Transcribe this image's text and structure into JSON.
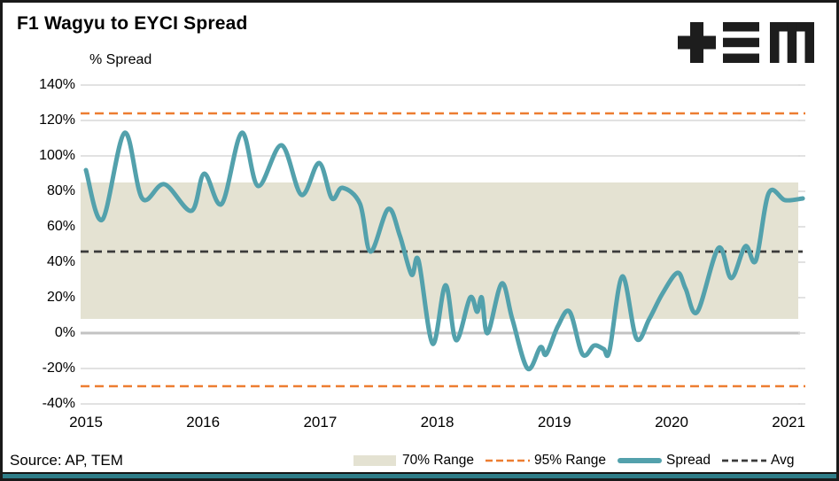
{
  "title": "F1 Wagyu to EYCI Spread",
  "axis_title": "% Spread",
  "source": "Source: AP, TEM",
  "logo_name": "TEM",
  "colors": {
    "spread": "#53a1ac",
    "band": "#e4e2d2",
    "range95": "#ED7D31",
    "avg": "#3b3b3b",
    "grid": "#d9d9d9",
    "zero_line": "#c3c3c3",
    "footer": "#2e7d88",
    "logo": "#1d1d1d",
    "frame": "#1a1a1a"
  },
  "y_axis": {
    "labels": [
      "140%",
      "120%",
      "100%",
      "80%",
      "60%",
      "40%",
      "20%",
      "0%",
      "-20%",
      "-40%"
    ],
    "values": [
      140,
      120,
      100,
      80,
      60,
      40,
      20,
      0,
      -20,
      -40
    ]
  },
  "x_axis": {
    "labels": [
      "2015",
      "2016",
      "2017",
      "2018",
      "2019",
      "2020",
      "2021"
    ],
    "values": [
      2015,
      2016,
      2017,
      2018,
      2019,
      2020,
      2021
    ]
  },
  "legend": {
    "items": [
      {
        "label": "70% Range",
        "swatch": "band"
      },
      {
        "label": "95% Range",
        "swatch": "dashed-orange"
      },
      {
        "label": "Spread",
        "swatch": "line-teal"
      },
      {
        "label": "Avg",
        "swatch": "dashed-dark"
      }
    ]
  },
  "chart_data": {
    "type": "line",
    "title": "F1 Wagyu to EYCI Spread",
    "ylabel": "% Spread",
    "ylim": [
      -40,
      140
    ],
    "xlim": [
      2015,
      2021.2
    ],
    "y_ticks": [
      140,
      120,
      100,
      80,
      60,
      40,
      20,
      0,
      -20,
      -40
    ],
    "x_ticks": [
      2015,
      2016,
      2017,
      2018,
      2019,
      2020,
      2021
    ],
    "grid": true,
    "legend_position": "bottom",
    "range70": {
      "low": 8,
      "high": 85
    },
    "range95": {
      "low": -30,
      "high": 124
    },
    "avg": 46,
    "series": [
      {
        "name": "Spread",
        "points": [
          [
            2015.0,
            92
          ],
          [
            2015.14,
            64
          ],
          [
            2015.33,
            113
          ],
          [
            2015.48,
            76
          ],
          [
            2015.67,
            84
          ],
          [
            2015.9,
            69
          ],
          [
            2016.01,
            90
          ],
          [
            2016.16,
            73
          ],
          [
            2016.33,
            113
          ],
          [
            2016.47,
            83
          ],
          [
            2016.67,
            106
          ],
          [
            2016.84,
            78
          ],
          [
            2016.99,
            96
          ],
          [
            2017.1,
            76
          ],
          [
            2017.19,
            82
          ],
          [
            2017.34,
            73
          ],
          [
            2017.43,
            46
          ],
          [
            2017.58,
            70
          ],
          [
            2017.68,
            55
          ],
          [
            2017.78,
            33
          ],
          [
            2017.84,
            41
          ],
          [
            2017.96,
            -6
          ],
          [
            2018.07,
            27
          ],
          [
            2018.16,
            -4
          ],
          [
            2018.28,
            20
          ],
          [
            2018.34,
            12
          ],
          [
            2018.38,
            20
          ],
          [
            2018.43,
            0
          ],
          [
            2018.55,
            28
          ],
          [
            2018.64,
            8
          ],
          [
            2018.77,
            -20
          ],
          [
            2018.88,
            -8
          ],
          [
            2018.93,
            -12
          ],
          [
            2019.03,
            4
          ],
          [
            2019.13,
            12
          ],
          [
            2019.24,
            -12
          ],
          [
            2019.34,
            -7
          ],
          [
            2019.42,
            -9
          ],
          [
            2019.47,
            -10
          ],
          [
            2019.58,
            32
          ],
          [
            2019.7,
            -3
          ],
          [
            2019.81,
            8
          ],
          [
            2019.92,
            22
          ],
          [
            2020.05,
            34
          ],
          [
            2020.12,
            25
          ],
          [
            2020.22,
            12
          ],
          [
            2020.4,
            48
          ],
          [
            2020.51,
            31
          ],
          [
            2020.63,
            49
          ],
          [
            2020.72,
            41
          ],
          [
            2020.83,
            79
          ],
          [
            2020.97,
            75
          ],
          [
            2021.12,
            76
          ]
        ]
      }
    ]
  }
}
